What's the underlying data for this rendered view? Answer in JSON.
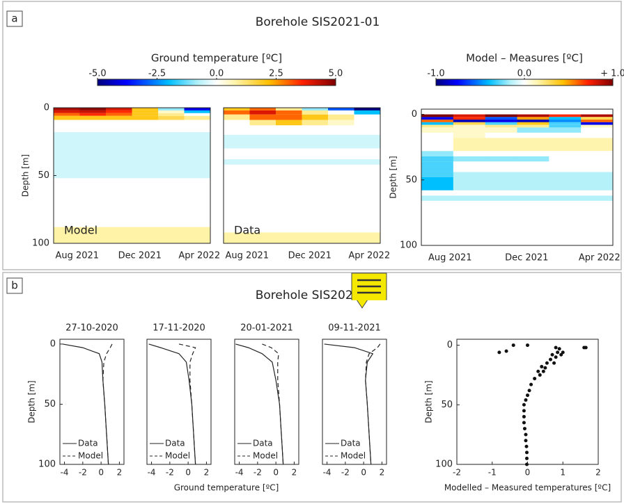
{
  "panels": [
    {
      "label": "a",
      "title": "Borehole SIS2021-01"
    },
    {
      "label": "b",
      "title": "Borehole SIS2021-01",
      "xlabel": "Ground temperature [ºC]"
    }
  ],
  "chart_data": [
    {
      "type": "heatmap",
      "label": "Model",
      "ylabel": "Depth [m]",
      "xticks": [
        "Aug 2021",
        "Dec 2021",
        "Apr 2022"
      ],
      "ylim": [
        100,
        0
      ],
      "yticks": [
        0,
        50,
        100
      ],
      "clim": [
        -5,
        5
      ],
      "colorbar": {
        "title": "Ground temperature [ºC]",
        "ticks": [
          {
            "value": -5,
            "label": "-5.0"
          },
          {
            "value": -2.5,
            "label": "-2.5"
          },
          {
            "value": 0,
            "label": "0.0"
          },
          {
            "value": 2.5,
            "label": "2.5"
          },
          {
            "value": 5,
            "label": "5.0"
          }
        ]
      },
      "depth_bins": [
        0,
        2,
        4,
        6,
        9,
        18,
        52,
        88,
        100
      ],
      "values": [
        [
          4.5,
          4.8,
          4,
          2,
          -1,
          -4
        ],
        [
          4,
          4.2,
          3.5,
          2,
          0.5,
          -2
        ],
        [
          3,
          3.5,
          3,
          2,
          1,
          0
        ],
        [
          2,
          2,
          2,
          2,
          1.5,
          1
        ],
        [
          0,
          0,
          0,
          0,
          0,
          0
        ],
        [
          -0.5,
          -0.5,
          -0.5,
          -0.5,
          -0.5,
          -0.5
        ],
        [
          0,
          0,
          0,
          0,
          0,
          0
        ],
        [
          0.8,
          0.8,
          0.8,
          0.8,
          0.8,
          0.8
        ]
      ]
    },
    {
      "type": "heatmap",
      "label": "Data",
      "xticks": [
        "Aug 2021",
        "Dec 2021",
        "Apr 2022"
      ],
      "ylim": [
        100,
        0
      ],
      "clim": [
        -5,
        5
      ],
      "depth_bins": [
        0,
        2,
        5,
        9,
        13,
        20,
        30,
        38,
        42,
        92,
        100
      ],
      "values": [
        [
          2,
          3,
          1,
          -1,
          -3,
          -5
        ],
        [
          3,
          4,
          3,
          1,
          0,
          -2
        ],
        [
          1,
          3,
          3,
          2,
          1,
          0
        ],
        [
          0,
          1,
          2,
          1,
          0.5,
          0
        ],
        [
          0,
          0,
          0,
          0,
          0,
          0
        ],
        [
          -0.5,
          -0.5,
          -0.5,
          -0.5,
          -0.5,
          -0.5
        ],
        [
          0,
          0,
          0,
          0,
          0,
          0
        ],
        [
          -0.5,
          -0.5,
          -0.5,
          -0.5,
          -0.5,
          -0.5
        ],
        [
          0,
          0,
          0,
          0,
          0,
          0
        ],
        [
          0.8,
          0.8,
          0.8,
          0.8,
          0.8,
          0.8
        ]
      ]
    },
    {
      "type": "heatmap",
      "ylabel": "Depth [m]",
      "xticks": [
        "Aug 2021",
        "Dec 2021",
        "Apr 2022"
      ],
      "ylim": [
        100,
        -4
      ],
      "yticks": [
        0,
        50,
        100
      ],
      "clim": [
        -1,
        1
      ],
      "colorbar": {
        "title": "Model – Measures [ºC]",
        "ticks": [
          {
            "value": -1,
            "label": "-1.0"
          },
          {
            "value": 0,
            "label": "0.0"
          },
          {
            "value": 1,
            "label": "+ 1.0"
          }
        ]
      },
      "depth_bins": [
        0,
        2,
        4,
        6,
        8,
        10,
        14,
        18,
        28,
        32,
        36,
        44,
        48,
        58,
        62,
        66,
        100
      ],
      "values": [
        [
          1,
          0.8,
          1,
          0.9,
          0.7,
          0.9
        ],
        [
          -0.8,
          0.7,
          -0.6,
          0.5,
          -0.4,
          0.3
        ],
        [
          0.6,
          -0.9,
          -0.8,
          -0.9,
          -0.5,
          0.6
        ],
        [
          -0.4,
          0.3,
          -0.3,
          0.4,
          -0.3,
          -0.8
        ],
        [
          0.2,
          0.1,
          0.2,
          0.2,
          -0.3,
          0.1
        ],
        [
          0.1,
          0.1,
          0.1,
          -0.2,
          -0.2,
          0
        ],
        [
          0,
          0.1,
          0,
          0,
          0,
          0
        ],
        [
          0,
          0.15,
          0.15,
          0.15,
          0.15,
          0.15
        ],
        [
          -0.2,
          0,
          0,
          0,
          0,
          0
        ],
        [
          -0.3,
          -0.2,
          -0.2,
          -0.2,
          0,
          0
        ],
        [
          -0.3,
          0,
          0,
          0,
          0,
          0
        ],
        [
          -0.3,
          -0.15,
          -0.15,
          -0.15,
          -0.15,
          -0.15
        ],
        [
          -0.4,
          -0.15,
          -0.15,
          -0.15,
          -0.15,
          -0.15
        ],
        [
          0,
          0,
          0,
          0,
          0,
          0
        ],
        [
          -0.15,
          -0.15,
          -0.15,
          -0.15,
          -0.15,
          -0.15
        ],
        [
          0,
          0,
          0,
          0,
          0,
          0
        ]
      ]
    },
    {
      "type": "profile",
      "title": "27-10-2020",
      "ylabel": "Depth [m]",
      "xlim": [
        -4.5,
        2.5
      ],
      "xticks": [
        -4,
        -2,
        0,
        2
      ],
      "ylim": [
        100,
        -4
      ],
      "yticks": [
        0,
        50,
        100
      ],
      "depths": [
        0,
        3,
        8,
        15,
        30,
        50,
        75,
        100
      ],
      "series": [
        {
          "name": "Data",
          "linestyle": "solid",
          "values": [
            -4.2,
            -2,
            -0.2,
            0.1,
            0.2,
            0.4,
            0.6,
            0.8
          ]
        },
        {
          "name": "Model",
          "linestyle": "dashed",
          "values": [
            1.2,
            1,
            0.6,
            0.3,
            0.2,
            0.4,
            0.6,
            0.8
          ]
        }
      ]
    },
    {
      "type": "profile",
      "title": "17-11-2020",
      "xlim": [
        -4.5,
        2.5
      ],
      "xticks": [
        -4,
        -2,
        0,
        2
      ],
      "ylim": [
        100,
        -4
      ],
      "depths": [
        0,
        3,
        8,
        15,
        30,
        50,
        75,
        100
      ],
      "series": [
        {
          "name": "Data",
          "linestyle": "solid",
          "values": [
            -4.3,
            -3,
            -1,
            -0.2,
            0.1,
            0.4,
            0.6,
            0.8
          ]
        },
        {
          "name": "Model",
          "linestyle": "dashed",
          "values": [
            -1,
            0.8,
            0.5,
            0.2,
            0.2,
            0.4,
            0.6,
            0.8
          ]
        }
      ]
    },
    {
      "type": "profile",
      "title": "20-01-2021",
      "xlim": [
        -4.5,
        2.5
      ],
      "xticks": [
        -4,
        -2,
        0,
        2
      ],
      "ylim": [
        100,
        -4
      ],
      "depths": [
        0,
        3,
        8,
        15,
        30,
        50,
        75,
        100
      ],
      "series": [
        {
          "name": "Data",
          "linestyle": "solid",
          "values": [
            -4.4,
            -3,
            -1.5,
            -0.4,
            0,
            0.4,
            0.6,
            0.8
          ]
        },
        {
          "name": "Model",
          "linestyle": "dashed",
          "values": [
            -1.5,
            -0.5,
            0.3,
            0.2,
            0.2,
            0.4,
            0.6,
            0.8
          ]
        }
      ]
    },
    {
      "type": "profile",
      "title": "09-11-2021",
      "xlim": [
        -4.5,
        2.5
      ],
      "xticks": [
        -4,
        -2,
        0,
        2
      ],
      "ylim": [
        100,
        -4
      ],
      "depths": [
        0,
        3,
        8,
        15,
        30,
        50,
        75,
        100
      ],
      "series": [
        {
          "name": "Data",
          "linestyle": "solid",
          "values": [
            -4.3,
            -1,
            1,
            0.4,
            0.2,
            0.4,
            0.6,
            0.8
          ]
        },
        {
          "name": "Model",
          "linestyle": "dashed",
          "values": [
            1.8,
            1.5,
            0.6,
            0.3,
            0.2,
            0.4,
            0.6,
            0.8
          ]
        }
      ]
    },
    {
      "type": "scatter",
      "xlabel": "Modelled – Measured temperatures [ºC]",
      "ylabel": "Depth [m]",
      "xlim": [
        -2,
        2
      ],
      "xticks": [
        -2,
        -1,
        0,
        1,
        2
      ],
      "ylim": [
        100,
        -5
      ],
      "yticks": [
        0,
        50,
        100
      ],
      "x": [
        -0.4,
        0,
        0.8,
        1.6,
        1.65,
        0.9,
        -0.6,
        -0.8,
        0.85,
        1,
        0.7,
        0.95,
        0.8,
        0.65,
        0.55,
        0.75,
        0.4,
        0.5,
        0.3,
        0.45,
        0.35,
        0.2,
        0.1,
        0.05,
        0,
        -0.05,
        -0.1,
        -0.1,
        -0.1,
        -0.1,
        -0.08,
        -0.05,
        -0.05,
        -0.03,
        -0.02,
        -0.02,
        -0.02
      ],
      "values": [
        0,
        0,
        2,
        2,
        2,
        3,
        5,
        6,
        6,
        6,
        8,
        8,
        10,
        12,
        15,
        15,
        18,
        19,
        22,
        22,
        25,
        28,
        33,
        38,
        42,
        46,
        50,
        55,
        60,
        65,
        70,
        75,
        80,
        85,
        90,
        95,
        100
      ]
    }
  ]
}
